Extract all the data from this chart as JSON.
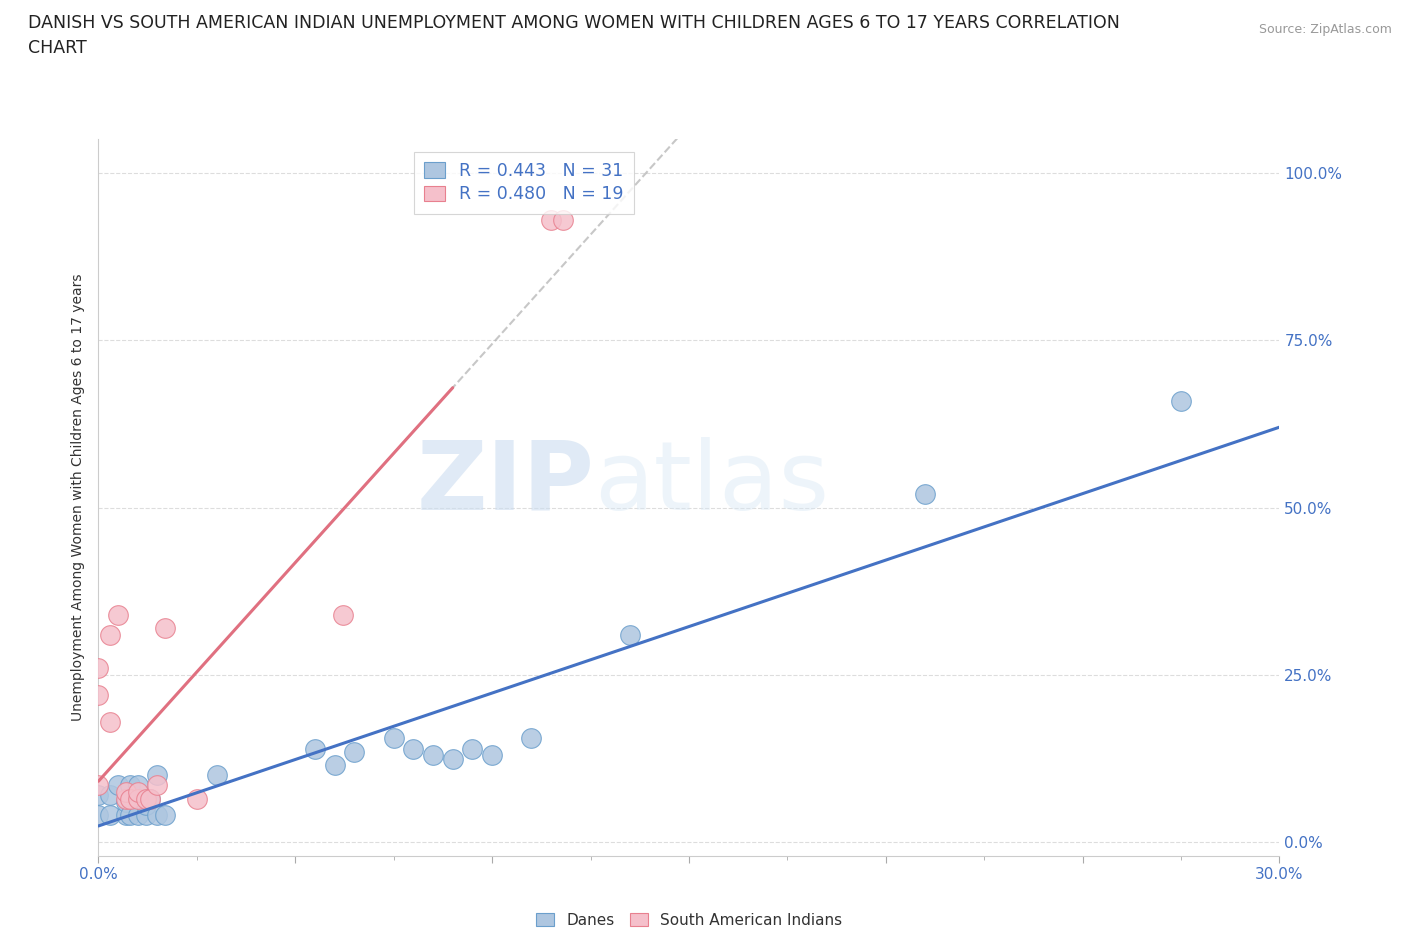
{
  "title_line1": "DANISH VS SOUTH AMERICAN INDIAN UNEMPLOYMENT AMONG WOMEN WITH CHILDREN AGES 6 TO 17 YEARS CORRELATION",
  "title_line2": "CHART",
  "source": "Source: ZipAtlas.com",
  "ylabel": "Unemployment Among Women with Children Ages 6 to 17 years",
  "xlim": [
    0.0,
    0.3
  ],
  "ylim": [
    -0.02,
    1.05
  ],
  "xtick_values": [
    0.0,
    0.05,
    0.1,
    0.15,
    0.2,
    0.25,
    0.3
  ],
  "xtick_labels": [
    "0.0%",
    "",
    "",
    "",
    "",
    "",
    "30.0%"
  ],
  "ytick_values": [
    0.0,
    0.25,
    0.5,
    0.75,
    1.0
  ],
  "ytick_labels": [
    "0.0%",
    "25.0%",
    "50.0%",
    "75.0%",
    "100.0%"
  ],
  "danes_color": "#aec6e0",
  "danes_edge_color": "#6b9fcc",
  "south_american_color": "#f5c0cb",
  "south_american_edge_color": "#e8808f",
  "danes_line_color": "#4472c4",
  "south_american_line_color": "#e07080",
  "gray_dashed_color": "#b0b0b0",
  "danes_R": 0.443,
  "danes_N": 31,
  "south_american_R": 0.48,
  "south_american_N": 19,
  "danes_x": [
    0.0,
    0.0,
    0.003,
    0.003,
    0.005,
    0.007,
    0.007,
    0.008,
    0.008,
    0.01,
    0.01,
    0.012,
    0.012,
    0.013,
    0.015,
    0.015,
    0.017,
    0.03,
    0.055,
    0.06,
    0.065,
    0.075,
    0.08,
    0.085,
    0.09,
    0.095,
    0.1,
    0.11,
    0.135,
    0.21,
    0.275
  ],
  "danes_y": [
    0.04,
    0.07,
    0.04,
    0.07,
    0.085,
    0.04,
    0.06,
    0.04,
    0.085,
    0.04,
    0.085,
    0.04,
    0.055,
    0.065,
    0.04,
    0.1,
    0.04,
    0.1,
    0.14,
    0.115,
    0.135,
    0.155,
    0.14,
    0.13,
    0.125,
    0.14,
    0.13,
    0.155,
    0.31,
    0.52,
    0.66
  ],
  "south_american_x": [
    0.0,
    0.0,
    0.0,
    0.003,
    0.003,
    0.005,
    0.007,
    0.007,
    0.008,
    0.01,
    0.01,
    0.012,
    0.013,
    0.015,
    0.017,
    0.025,
    0.062,
    0.115,
    0.118
  ],
  "south_american_y": [
    0.085,
    0.22,
    0.26,
    0.18,
    0.31,
    0.34,
    0.065,
    0.075,
    0.065,
    0.065,
    0.075,
    0.065,
    0.065,
    0.085,
    0.32,
    0.065,
    0.34,
    0.93,
    0.93
  ],
  "background_color": "#ffffff",
  "grid_color": "#dddddd",
  "watermark_text": "ZIP",
  "watermark_text2": "atlas",
  "legend_danes_label": "Danes",
  "legend_south_american_label": "South American Indians"
}
